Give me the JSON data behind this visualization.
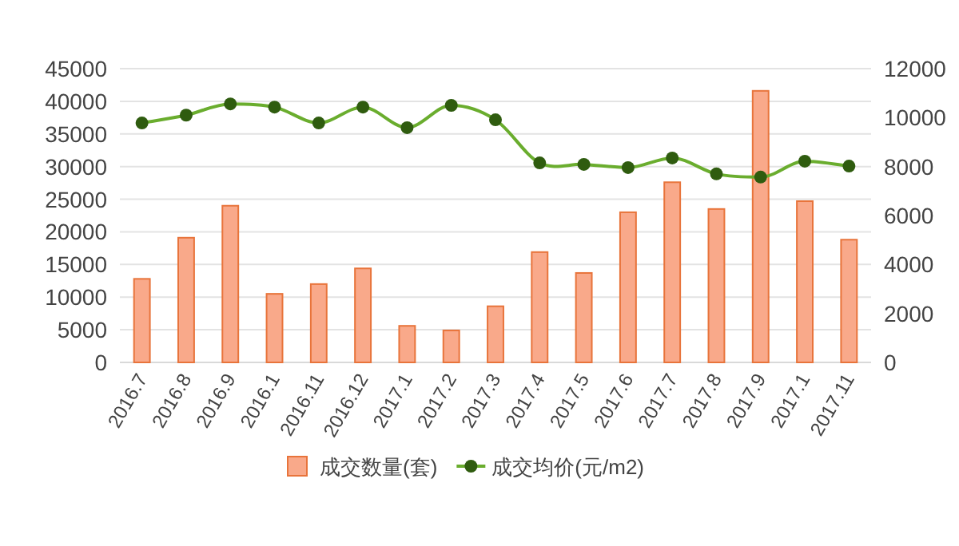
{
  "chart_data": {
    "type": "bar",
    "categories": [
      "2016.7",
      "2016.8",
      "2016.9",
      "2016.1",
      "2016.11",
      "2016.12",
      "2017.1",
      "2017.2",
      "2017.3",
      "2017.4",
      "2017.5",
      "2017.6",
      "2017.7",
      "2017.8",
      "2017.9",
      "2017.1",
      "2017.11"
    ],
    "series": [
      {
        "name": "成交数量(套)",
        "color": "#f9a98a",
        "values": [
          12800,
          19100,
          24000,
          10500,
          12000,
          14400,
          5600,
          4900,
          8600,
          16900,
          13700,
          23000,
          27600,
          23500,
          41600,
          24700,
          18800
        ]
      },
      {
        "name": "成交均价(元/m2)",
        "type": "line",
        "axis": "y2",
        "color": "#6aad2e",
        "values": [
          9780,
          10100,
          10560,
          10430,
          9780,
          10430,
          9590,
          10500,
          9910,
          8150,
          8090,
          7960,
          8350,
          7700,
          7570,
          8220,
          8020
        ]
      }
    ],
    "ylim": [
      0,
      45000
    ],
    "yticks": [
      0,
      5000,
      10000,
      15000,
      20000,
      25000,
      30000,
      35000,
      40000,
      45000
    ],
    "y2lim": [
      0,
      12000
    ],
    "y2ticks": [
      0,
      2000,
      4000,
      6000,
      8000,
      10000,
      12000
    ],
    "grid": "y",
    "legend": "bottom",
    "marker": "circle"
  }
}
